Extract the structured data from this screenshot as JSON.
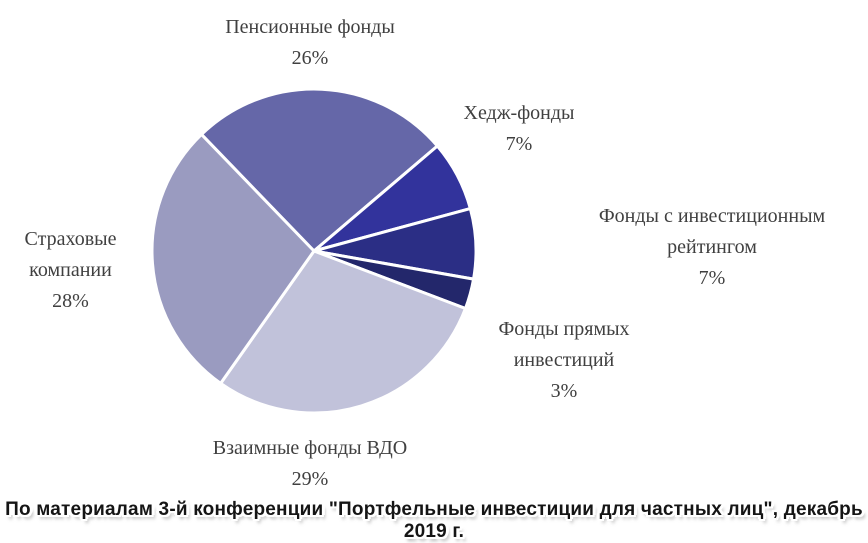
{
  "chart_data": {
    "type": "pie",
    "title": "",
    "legend_position": "none",
    "direction": "clockwise",
    "start_angle_deg": -44,
    "stroke_color": "#ffffff",
    "label_color": "#404040",
    "slices": [
      {
        "name": "Пенсионные фонды",
        "value": 26,
        "label": "26%",
        "color": "#6567a8"
      },
      {
        "name": "Хедж-фонды",
        "value": 7,
        "label": "7%",
        "color": "#32339c"
      },
      {
        "name": "Фонды с инвестиционным рейтингом",
        "value": 7,
        "label": "7%",
        "color": "#2b2e85"
      },
      {
        "name": "Фонды прямых инвестиций",
        "value": 3,
        "label": "3%",
        "color": "#23276b"
      },
      {
        "name": "Взаимные фонды ВДО",
        "value": 29,
        "label": "29%",
        "color": "#c1c2da"
      },
      {
        "name": "Страховые компании",
        "value": 28,
        "label": "28%",
        "color": "#9a9bc0"
      }
    ]
  },
  "caption": "По материалам 3-й конференции \"Портфельные инвестиции для частных лиц\", декабрь 2019 г."
}
